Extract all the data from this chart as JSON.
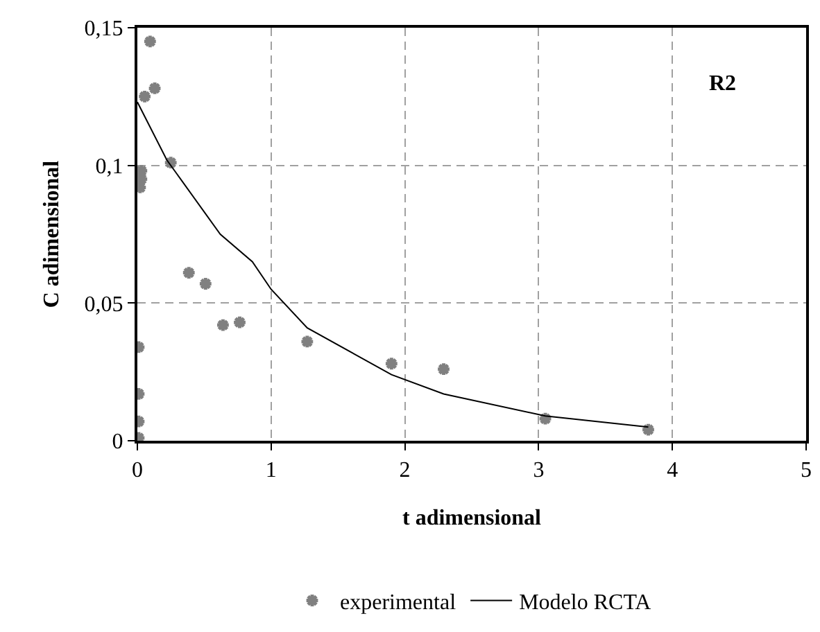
{
  "chart_data": {
    "type": "scatter",
    "xlabel": "t adimensional",
    "ylabel": "C adimensional",
    "annotations": [
      "R2"
    ],
    "xlim": [
      0,
      5
    ],
    "xticks": [
      0,
      1,
      2,
      3,
      4,
      5
    ],
    "ylim": [
      0,
      0.15
    ],
    "yticks": [
      {
        "value": 0,
        "label": "0"
      },
      {
        "value": 0.05,
        "label": "0,05"
      },
      {
        "value": 0.1,
        "label": "0,1"
      },
      {
        "value": 0.15,
        "label": "0,15"
      }
    ],
    "grid": true,
    "legend": "bottom",
    "marker": "cross",
    "series": [
      {
        "name": "experimental",
        "color": "#808080",
        "x": [
          0.095,
          0.055,
          0.13,
          0.25,
          0.03,
          0.03,
          0.02,
          0.385,
          0.51,
          0.64,
          0.765,
          1.27,
          0.01,
          0.01,
          0.01,
          0.01,
          1.9,
          2.29,
          3.05,
          3.82
        ],
        "values": [
          0.145,
          0.125,
          0.128,
          0.101,
          0.098,
          0.095,
          0.092,
          0.061,
          0.057,
          0.042,
          0.043,
          0.036,
          0.034,
          0.017,
          0.007,
          0.001,
          0.028,
          0.026,
          0.008,
          0.004
        ]
      },
      {
        "name": "Modelo RCTA",
        "type": "line",
        "color": "#000000",
        "line_style": "solid",
        "marker": "none",
        "x": [
          0,
          0.22,
          0.62,
          0.86,
          1.0,
          1.27,
          1.9,
          2.29,
          3.05,
          3.82
        ],
        "values": [
          0.123,
          0.102,
          0.075,
          0.065,
          0.055,
          0.041,
          0.024,
          0.017,
          0.009,
          0.005
        ]
      }
    ]
  }
}
